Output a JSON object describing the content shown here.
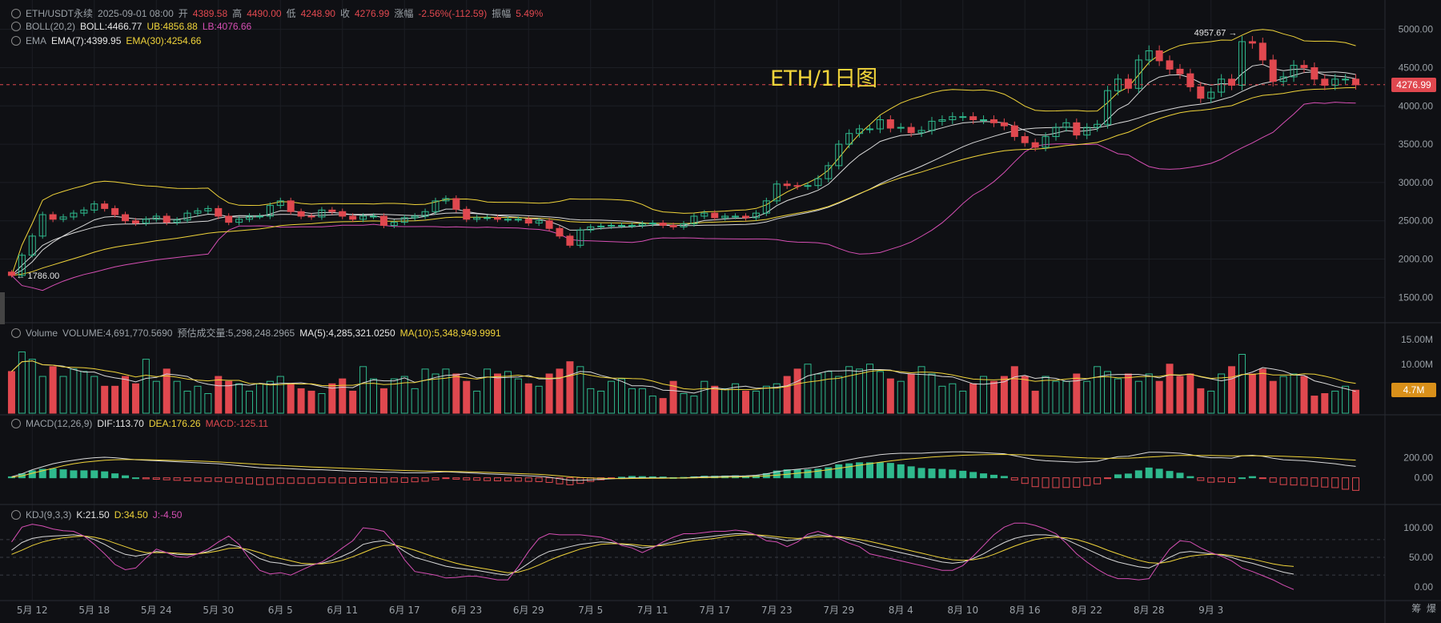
{
  "header": {
    "symbol": "ETH/USDT永续",
    "date": "2025-09-01 08:00",
    "open_label": "开",
    "open": "4389.58",
    "high_label": "高",
    "high": "4490.00",
    "low_label": "低",
    "low": "4248.90",
    "close_label": "收",
    "close": "4276.99",
    "change_label": "涨幅",
    "change": "-2.56%(-112.59)",
    "amp_label": "振幅",
    "amp": "5.49%"
  },
  "boll": {
    "label": "BOLL(20,2)",
    "mid": "BOLL:4466.77",
    "ub": "UB:4856.88",
    "lb": "LB:4076.66"
  },
  "ema": {
    "label": "EMA",
    "e7": "EMA(7):4399.95",
    "e30": "EMA(30):4254.66"
  },
  "volume_hdr": {
    "label": "Volume",
    "vol": "VOLUME:4,691,770.5690",
    "est": "预估成交量:5,298,248.2965",
    "ma5": "MA(5):4,285,321.0250",
    "ma10": "MA(10):5,348,949.9991"
  },
  "macd_hdr": {
    "label": "MACD(12,26,9)",
    "dif": "DIF:113.70",
    "dea": "DEA:176.26",
    "macd": "MACD:-125.11"
  },
  "kdj_hdr": {
    "label": "KDJ(9,3,3)",
    "k": "K:21.50",
    "d": "D:34.50",
    "j": "J:-4.50"
  },
  "overlay_title": "ETH/1日图",
  "current_price_tag": "4276.99",
  "current_volume_tag": "4.7M",
  "high_marker": "4957.67",
  "low_marker": "1786.00",
  "right_footer": [
    "筹",
    "爆"
  ],
  "colors": {
    "up": "#2fb98d",
    "down": "#e0484f",
    "boll_mid": "#d9d9d9",
    "boll_band": "#f0d43a",
    "boll_lb": "#d64fb4",
    "ema7": "#d9d9d9",
    "ema30": "#f0d43a"
  },
  "chart_data": {
    "type": "candlestick",
    "x_ticks": [
      "5月 12",
      "5月 18",
      "5月 24",
      "5月 30",
      "6月 5",
      "6月 11",
      "6月 17",
      "6月 23",
      "6月 29",
      "7月 5",
      "7月 11",
      "7月 17",
      "7月 23",
      "7月 29",
      "8月 4",
      "8月 10",
      "8月 16",
      "8月 22",
      "8月 28",
      "9月 3"
    ],
    "price_axis_ticks": [
      "5000.00",
      "4500.00",
      "4000.00",
      "3500.00",
      "3000.00",
      "2500.00",
      "2000.00",
      "1500.00"
    ],
    "price_ylim": [
      1200,
      5300
    ],
    "volume_axis_ticks": [
      "15.00M",
      "10.00M"
    ],
    "volume_ylim": [
      0,
      16000000
    ],
    "macd_axis_ticks": [
      "200.00",
      "0.00"
    ],
    "macd_ylim": [
      -250,
      500
    ],
    "kdj_axis_ticks": [
      "100.00",
      "50.00",
      "0.00"
    ],
    "kdj_ylim": [
      -15,
      115
    ],
    "close": [
      1786,
      2050,
      2300,
      2580,
      2520,
      2550,
      2600,
      2640,
      2720,
      2660,
      2580,
      2500,
      2470,
      2520,
      2560,
      2480,
      2510,
      2600,
      2630,
      2660,
      2560,
      2480,
      2520,
      2560,
      2560,
      2700,
      2760,
      2620,
      2560,
      2550,
      2640,
      2620,
      2560,
      2520,
      2560,
      2560,
      2440,
      2480,
      2540,
      2560,
      2620,
      2760,
      2790,
      2650,
      2520,
      2540,
      2540,
      2520,
      2520,
      2520,
      2470,
      2500,
      2400,
      2300,
      2180,
      2380,
      2420,
      2430,
      2440,
      2440,
      2440,
      2460,
      2470,
      2440,
      2420,
      2460,
      2560,
      2600,
      2540,
      2560,
      2560,
      2540,
      2600,
      2760,
      2980,
      2960,
      2950,
      2960,
      3050,
      3220,
      3500,
      3640,
      3700,
      3700,
      3820,
      3710,
      3720,
      3650,
      3680,
      3800,
      3820,
      3860,
      3860,
      3820,
      3820,
      3780,
      3740,
      3600,
      3520,
      3460,
      3600,
      3720,
      3780,
      3620,
      3720,
      3760,
      4200,
      4350,
      4230,
      4600,
      4720,
      4590,
      4480,
      4420,
      4250,
      4100,
      4180,
      4350,
      4270,
      4840,
      4820,
      4600,
      4320,
      4380,
      4530,
      4500,
      4350,
      4270,
      4350,
      4350,
      4276.99
    ],
    "volume": [
      8500000,
      12500000,
      11000000,
      7500000,
      9500000,
      7500000,
      9000000,
      8500000,
      7500000,
      5500000,
      5500000,
      7500000,
      6000000,
      11000000,
      6500000,
      9000000,
      6500000,
      4500000,
      5500000,
      4000000,
      7500000,
      6500000,
      6000000,
      4500000,
      6000000,
      6500000,
      7500000,
      6000000,
      5000000,
      4500000,
      4000000,
      6000000,
      7000000,
      4500000,
      9500000,
      7000000,
      5000000,
      7000000,
      7500000,
      5000000,
      9000000,
      8000000,
      9000000,
      8000000,
      6500000,
      4500000,
      9000000,
      8000000,
      8500000,
      7000000,
      6000000,
      5500000,
      8000000,
      9000000,
      10500000,
      9500000,
      5000000,
      4500000,
      6500000,
      7000000,
      5000000,
      5000000,
      3500000,
      3000000,
      6500000,
      4000000,
      3500000,
      6500000,
      5500000,
      5000000,
      6000000,
      4500000,
      4500000,
      5500000,
      6000000,
      7500000,
      9000000,
      10000000,
      8000000,
      8500000,
      7500000,
      9500000,
      9000000,
      10000000,
      8500000,
      7000000,
      6500000,
      8000000,
      9500000,
      8000000,
      5500000,
      6000000,
      4500000,
      6000000,
      7500000,
      6500000,
      7500000,
      9500000,
      7500000,
      4500000,
      7500000,
      6500000,
      6500000,
      8000000,
      6500000,
      9500000,
      8500000,
      7000000,
      8000000,
      6500000,
      8000000,
      6500000,
      10000000,
      7500000,
      8000000,
      5000000,
      4500000,
      8000000,
      9500000,
      12000000,
      8000000,
      9000000,
      6500000,
      7500000,
      8000000,
      7500000,
      3500000,
      4000000,
      4500000,
      5500000,
      4691770
    ],
    "macd_dif": [
      10,
      40,
      80,
      110,
      140,
      160,
      175,
      190,
      200,
      205,
      200,
      190,
      180,
      175,
      170,
      165,
      160,
      155,
      150,
      145,
      140,
      130,
      120,
      110,
      100,
      95,
      95,
      90,
      85,
      80,
      80,
      75,
      70,
      65,
      65,
      60,
      55,
      55,
      50,
      50,
      50,
      55,
      60,
      55,
      50,
      45,
      40,
      35,
      30,
      25,
      20,
      15,
      5,
      -10,
      -25,
      -25,
      -20,
      -15,
      -10,
      -5,
      0,
      0,
      0,
      0,
      -2,
      0,
      5,
      10,
      12,
      15,
      18,
      20,
      25,
      40,
      60,
      75,
      85,
      95,
      110,
      130,
      160,
      180,
      200,
      215,
      230,
      240,
      245,
      245,
      245,
      250,
      255,
      258,
      258,
      255,
      250,
      245,
      240,
      220,
      200,
      180,
      170,
      165,
      160,
      155,
      160,
      165,
      190,
      210,
      215,
      235,
      255,
      255,
      250,
      245,
      230,
      210,
      200,
      200,
      195,
      220,
      225,
      215,
      195,
      180,
      175,
      170,
      160,
      150,
      140,
      125,
      113.7
    ],
    "macd_dea": [
      5,
      20,
      45,
      70,
      95,
      120,
      140,
      155,
      165,
      175,
      180,
      182,
      182,
      180,
      178,
      175,
      172,
      170,
      167,
      163,
      158,
      152,
      146,
      140,
      134,
      128,
      123,
      118,
      113,
      108,
      104,
      100,
      96,
      92,
      88,
      84,
      80,
      76,
      73,
      70,
      67,
      65,
      64,
      62,
      60,
      57,
      54,
      50,
      46,
      42,
      38,
      34,
      28,
      20,
      10,
      3,
      -2,
      -5,
      -7,
      -8,
      -7,
      -6,
      -5,
      -4,
      -3,
      -2,
      0,
      2,
      4,
      6,
      8,
      11,
      14,
      19,
      26,
      35,
      45,
      55,
      67,
      80,
      95,
      110,
      125,
      140,
      155,
      168,
      180,
      190,
      198,
      206,
      213,
      219,
      225,
      228,
      230,
      232,
      233,
      231,
      228,
      224,
      219,
      214,
      208,
      202,
      198,
      195,
      194,
      195,
      196,
      200,
      206,
      212,
      218,
      222,
      224,
      223,
      222,
      220,
      218,
      218,
      219,
      219,
      217,
      214,
      211,
      207,
      202,
      196,
      189,
      182,
      176.26
    ],
    "macd_hist": [
      10,
      40,
      70,
      85,
      90,
      80,
      70,
      70,
      70,
      60,
      40,
      20,
      0,
      -10,
      -15,
      -20,
      -25,
      -30,
      -34,
      -36,
      -36,
      -44,
      -52,
      -60,
      -68,
      -66,
      -56,
      -56,
      -56,
      -56,
      -48,
      -50,
      -52,
      -54,
      -46,
      -48,
      -50,
      -42,
      -46,
      -40,
      -34,
      -20,
      -8,
      -14,
      -20,
      -24,
      -28,
      -30,
      -32,
      -34,
      -36,
      -38,
      -46,
      -60,
      -70,
      -56,
      -36,
      -20,
      -6,
      6,
      14,
      12,
      10,
      8,
      2,
      4,
      10,
      16,
      16,
      18,
      20,
      18,
      22,
      42,
      68,
      80,
      80,
      80,
      86,
      100,
      130,
      140,
      150,
      150,
      150,
      144,
      130,
      110,
      94,
      88,
      84,
      78,
      66,
      54,
      40,
      26,
      14,
      -22,
      -56,
      -88,
      -98,
      -98,
      -96,
      -94,
      -76,
      -60,
      -8,
      30,
      38,
      70,
      98,
      86,
      64,
      46,
      12,
      -26,
      -44,
      -40,
      -46,
      0,
      12,
      -8,
      -44,
      -68,
      -72,
      -74,
      -84,
      -92,
      -98,
      -114,
      -125.11
    ],
    "kdj_k": [
      62,
      75,
      82,
      85,
      86,
      87,
      88,
      86,
      80,
      72,
      62,
      55,
      52,
      55,
      60,
      58,
      55,
      54,
      56,
      60,
      66,
      72,
      68,
      58,
      48,
      42,
      40,
      36,
      36,
      38,
      40,
      45,
      52,
      60,
      72,
      76,
      78,
      72,
      60,
      50,
      45,
      40,
      35,
      32,
      30,
      28,
      25,
      22,
      20,
      28,
      40,
      52,
      60,
      64,
      68,
      72,
      74,
      76,
      75,
      72,
      70,
      66,
      68,
      72,
      76,
      80,
      82,
      84,
      86,
      88,
      90,
      90,
      88,
      84,
      82,
      78,
      80,
      85,
      88,
      86,
      84,
      80,
      76,
      70,
      66,
      62,
      58,
      54,
      50,
      46,
      42,
      40,
      42,
      48,
      56,
      66,
      75,
      82,
      86,
      88,
      88,
      86,
      80,
      72,
      64,
      56,
      48,
      42,
      38,
      34,
      32,
      40,
      50,
      58,
      60,
      58,
      56,
      54,
      50,
      44,
      40,
      35,
      30,
      25,
      21.5
    ],
    "kdj_d": [
      55,
      62,
      70,
      76,
      80,
      83,
      85,
      86,
      84,
      80,
      74,
      68,
      62,
      58,
      58,
      58,
      57,
      56,
      56,
      58,
      61,
      65,
      66,
      63,
      58,
      52,
      48,
      44,
      40,
      39,
      39,
      41,
      45,
      51,
      58,
      65,
      70,
      71,
      67,
      62,
      56,
      50,
      45,
      40,
      36,
      33,
      30,
      27,
      24,
      25,
      30,
      37,
      45,
      52,
      58,
      64,
      68,
      72,
      73,
      73,
      72,
      70,
      69,
      70,
      72,
      75,
      78,
      80,
      82,
      85,
      87,
      88,
      88,
      87,
      85,
      83,
      82,
      83,
      85,
      85,
      85,
      83,
      80,
      77,
      73,
      69,
      65,
      61,
      57,
      53,
      49,
      46,
      45,
      46,
      49,
      55,
      62,
      69,
      75,
      80,
      83,
      84,
      83,
      80,
      75,
      69,
      62,
      56,
      50,
      45,
      41,
      40,
      43,
      48,
      52,
      54,
      55,
      55,
      53,
      50,
      47,
      43,
      39,
      36,
      34.5
    ],
    "kdj_j": [
      76,
      101,
      106,
      103,
      98,
      95,
      94,
      86,
      72,
      56,
      38,
      29,
      32,
      49,
      64,
      58,
      51,
      50,
      56,
      64,
      76,
      86,
      72,
      48,
      28,
      22,
      24,
      20,
      28,
      36,
      42,
      53,
      66,
      78,
      100,
      98,
      94,
      74,
      46,
      26,
      23,
      20,
      15,
      16,
      18,
      18,
      15,
      12,
      12,
      34,
      60,
      82,
      90,
      88,
      88,
      88,
      86,
      84,
      79,
      70,
      66,
      58,
      66,
      76,
      84,
      90,
      90,
      92,
      94,
      94,
      96,
      94,
      88,
      78,
      76,
      68,
      76,
      89,
      94,
      88,
      82,
      74,
      68,
      56,
      52,
      48,
      44,
      40,
      36,
      32,
      28,
      28,
      36,
      52,
      70,
      88,
      101,
      108,
      108,
      104,
      98,
      90,
      74,
      56,
      42,
      30,
      20,
      14,
      14,
      12,
      14,
      40,
      64,
      78,
      76,
      66,
      58,
      52,
      44,
      32,
      26,
      19,
      12,
      3,
      -4.5
    ]
  }
}
